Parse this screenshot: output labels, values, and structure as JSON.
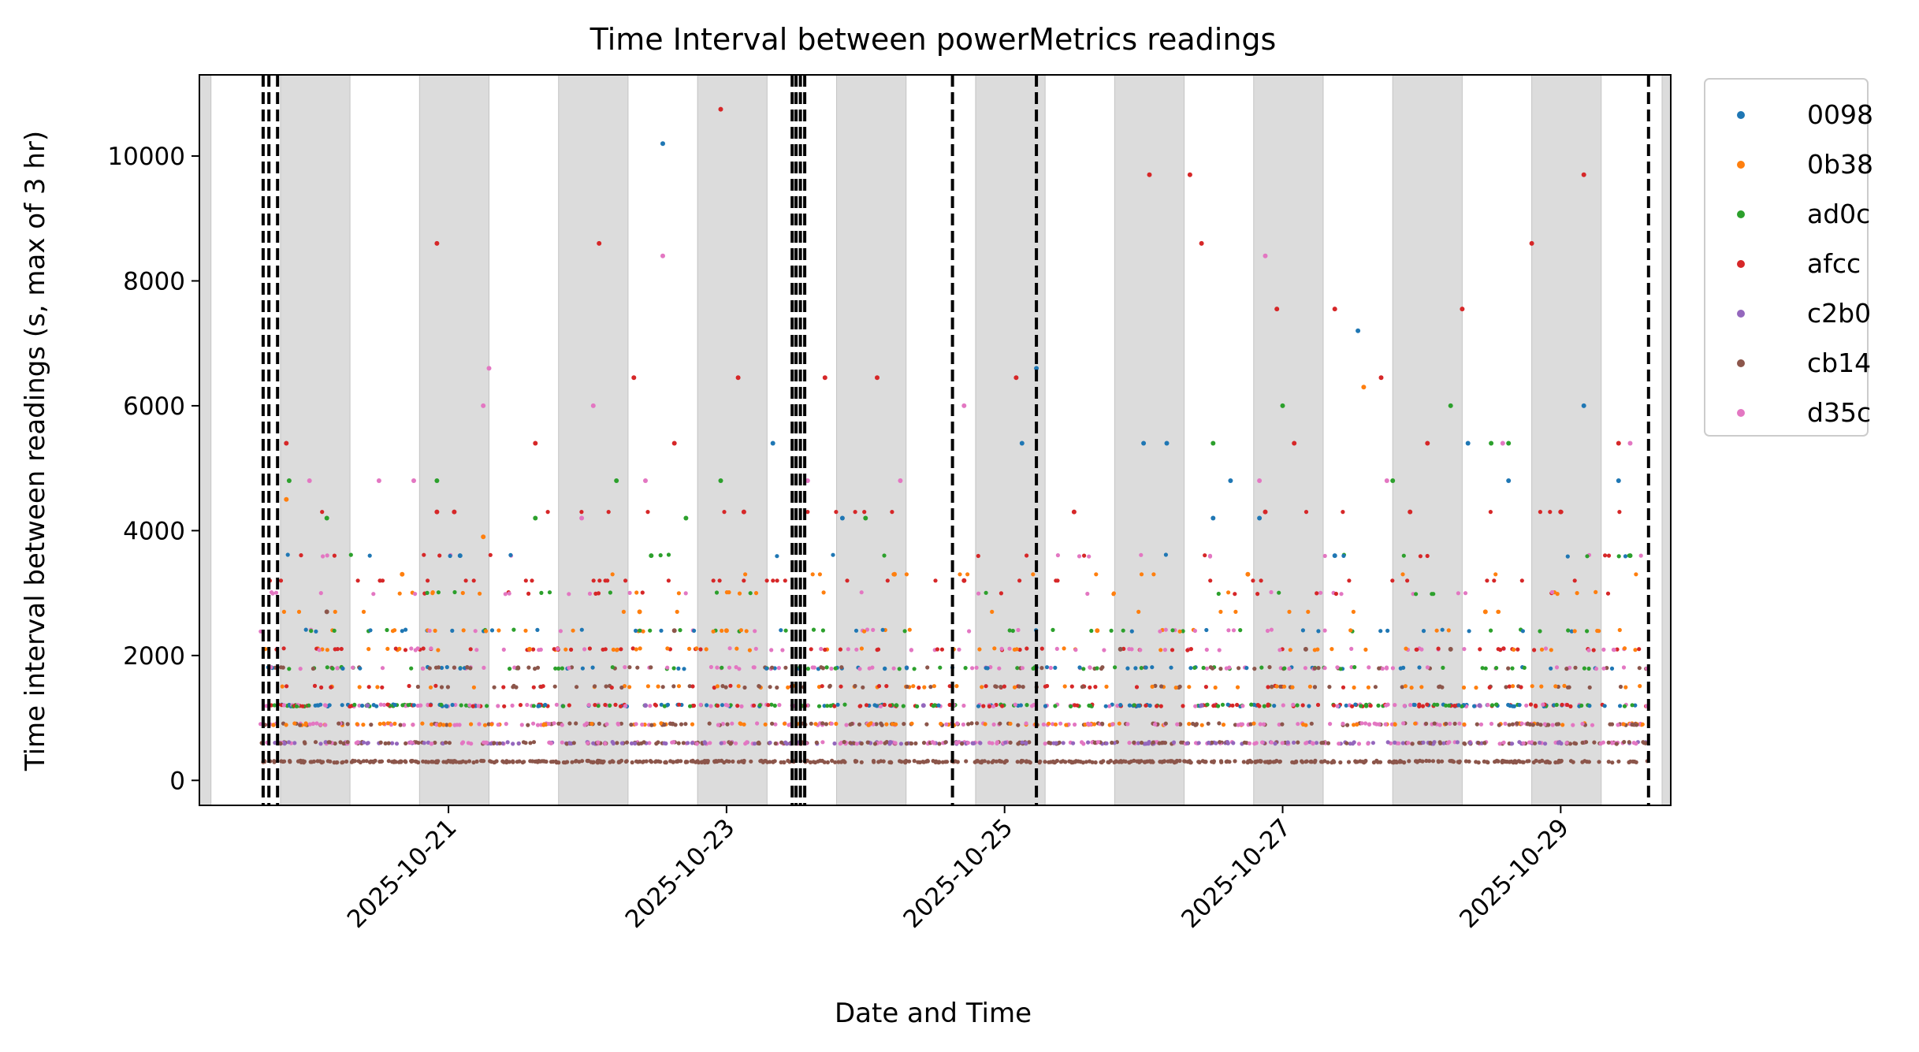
{
  "chart_data": {
    "type": "scatter",
    "title": "Time Interval between powerMetrics readings",
    "xlabel": "Date and Time",
    "ylabel": "Time interval between readings (s, max of 3 hr)",
    "xlim": [
      "2025-10-19 05:00",
      "2025-10-29 19:00"
    ],
    "ylim": [
      -400,
      11300
    ],
    "x_ticks": [
      "2025-10-21",
      "2025-10-23",
      "2025-10-25",
      "2025-10-27",
      "2025-10-29"
    ],
    "y_ticks": [
      0,
      2000,
      4000,
      6000,
      8000,
      10000
    ],
    "grid": false,
    "legend_position": "outside-top-right",
    "shaded_bands": [
      [
        "2025-10-19 05:00",
        "2025-10-19 07:00"
      ],
      [
        "2025-10-19 19:00",
        "2025-10-20 07:00"
      ],
      [
        "2025-10-20 19:00",
        "2025-10-21 07:00"
      ],
      [
        "2025-10-21 19:00",
        "2025-10-22 07:00"
      ],
      [
        "2025-10-22 19:00",
        "2025-10-23 07:00"
      ],
      [
        "2025-10-23 19:00",
        "2025-10-24 07:00"
      ],
      [
        "2025-10-24 19:00",
        "2025-10-25 07:00"
      ],
      [
        "2025-10-25 19:00",
        "2025-10-26 07:00"
      ],
      [
        "2025-10-26 19:00",
        "2025-10-27 07:00"
      ],
      [
        "2025-10-27 19:00",
        "2025-10-28 07:00"
      ],
      [
        "2025-10-28 19:00",
        "2025-10-29 07:00"
      ],
      [
        "2025-10-29 17:30",
        "2025-10-29 19:00"
      ]
    ],
    "vertical_lines": [
      "2025-10-19 16:00",
      "2025-10-19 17:00",
      "2025-10-19 18:30",
      "2025-10-23 11:20",
      "2025-10-23 12:00",
      "2025-10-23 12:45",
      "2025-10-23 13:30",
      "2025-10-24 15:00",
      "2025-10-25 05:30",
      "2025-10-29 15:10"
    ],
    "baseline_levels": [
      300,
      600,
      900,
      1200,
      1500,
      1800,
      2100,
      2400,
      3000,
      3600
    ],
    "series": [
      {
        "name": "0098",
        "color": "#1f77b4",
        "points": [
          [
            "2025-10-22 13:00",
            10200
          ],
          [
            "2025-10-23 08:00",
            5400
          ],
          [
            "2025-10-25 03:00",
            5400
          ],
          [
            "2025-10-25 05:30",
            6600
          ],
          [
            "2025-10-26 00:00",
            5400
          ],
          [
            "2025-10-26 04:00",
            5400
          ],
          [
            "2025-10-26 12:00",
            4200
          ],
          [
            "2025-10-26 15:00",
            4800
          ],
          [
            "2025-10-27 13:00",
            7200
          ],
          [
            "2025-10-28 08:00",
            5400
          ],
          [
            "2025-10-29 04:00",
            6000
          ],
          [
            "2025-10-29 10:00",
            4800
          ],
          [
            "2025-10-26 20:00",
            4200
          ],
          [
            "2025-10-27 09:00",
            3600
          ],
          [
            "2025-10-23 20:00",
            4200
          ],
          [
            "2025-10-21 02:00",
            3600
          ],
          [
            "2025-10-28 15:00",
            4800
          ]
        ]
      },
      {
        "name": "0b38",
        "color": "#ff7f0e",
        "points": [
          [
            "2025-10-19 20:00",
            4500
          ],
          [
            "2025-10-20 16:00",
            3300
          ],
          [
            "2025-10-21 06:00",
            3900
          ],
          [
            "2025-10-22 09:00",
            2700
          ],
          [
            "2025-10-27 14:00",
            6300
          ],
          [
            "2025-10-28 11:00",
            2700
          ],
          [
            "2025-10-21 14:00",
            2100
          ],
          [
            "2025-10-24 05:00",
            3300
          ],
          [
            "2025-10-26 18:00",
            3300
          ],
          [
            "2025-10-23 00:00",
            2400
          ],
          [
            "2025-10-25 16:00",
            2400
          ]
        ]
      },
      {
        "name": "ad0c",
        "color": "#2ca02c",
        "points": [
          [
            "2025-10-20 03:00",
            4200
          ],
          [
            "2025-10-20 22:00",
            4800
          ],
          [
            "2025-10-21 15:00",
            4200
          ],
          [
            "2025-10-22 05:00",
            4800
          ],
          [
            "2025-10-22 17:00",
            4200
          ],
          [
            "2025-10-22 23:00",
            4800
          ],
          [
            "2025-10-24 00:00",
            4200
          ],
          [
            "2025-10-26 12:00",
            5400
          ],
          [
            "2025-10-27 00:00",
            6000
          ],
          [
            "2025-10-27 19:00",
            4800
          ],
          [
            "2025-10-28 05:00",
            6000
          ],
          [
            "2025-10-28 12:00",
            5400
          ],
          [
            "2025-10-28 15:00",
            5400
          ],
          [
            "2025-10-19 20:30",
            4800
          ],
          [
            "2025-10-22 11:00",
            3600
          ],
          [
            "2025-10-29 12:00",
            3600
          ]
        ]
      },
      {
        "name": "afcc",
        "color": "#d62728",
        "points": [
          [
            "2025-10-19 20:00",
            5400
          ],
          [
            "2025-10-20 22:00",
            8600
          ],
          [
            "2025-10-21 15:00",
            5400
          ],
          [
            "2025-10-22 02:00",
            8600
          ],
          [
            "2025-10-22 08:00",
            6450
          ],
          [
            "2025-10-22 15:00",
            5400
          ],
          [
            "2025-10-22 23:00",
            10750
          ],
          [
            "2025-10-23 02:00",
            6450
          ],
          [
            "2025-10-23 17:00",
            6450
          ],
          [
            "2025-10-24 02:00",
            6450
          ],
          [
            "2025-10-24 17:00",
            3200
          ],
          [
            "2025-10-25 02:00",
            6450
          ],
          [
            "2025-10-26 01:00",
            9700
          ],
          [
            "2025-10-26 08:00",
            9700
          ],
          [
            "2025-10-26 10:00",
            8600
          ],
          [
            "2025-10-26 23:00",
            7550
          ],
          [
            "2025-10-27 09:00",
            7550
          ],
          [
            "2025-10-27 17:00",
            6450
          ],
          [
            "2025-10-28 07:00",
            7550
          ],
          [
            "2025-10-28 19:00",
            8600
          ],
          [
            "2025-10-29 04:00",
            9700
          ],
          [
            "2025-10-29 10:00",
            5400
          ],
          [
            "2025-10-20 22:00",
            4300
          ],
          [
            "2025-10-21 01:00",
            4300
          ],
          [
            "2025-10-23 03:00",
            4300
          ],
          [
            "2025-10-25 12:00",
            4300
          ],
          [
            "2025-10-26 21:00",
            4300
          ],
          [
            "2025-10-27 22:00",
            4300
          ],
          [
            "2025-10-29 00:00",
            4300
          ],
          [
            "2025-10-27 02:00",
            5400
          ],
          [
            "2025-10-28 01:00",
            5400
          ]
        ]
      },
      {
        "name": "c2b0",
        "color": "#9467bd",
        "points": [
          [
            "2025-10-20 10:00",
            1200
          ],
          [
            "2025-10-22 10:00",
            1200
          ],
          [
            "2025-10-24 10:00",
            1200
          ],
          [
            "2025-10-26 10:00",
            1200
          ],
          [
            "2025-10-28 10:00",
            1200
          ]
        ]
      },
      {
        "name": "cb14",
        "color": "#8c564b",
        "points": [
          [
            "2025-10-20 03:00",
            2700
          ],
          [
            "2025-10-22 15:00",
            2400
          ],
          [
            "2025-10-25 20:00",
            2100
          ],
          [
            "2025-10-28 05:00",
            2100
          ],
          [
            "2025-10-21 12:00",
            1800
          ],
          [
            "2025-10-27 04:00",
            2100
          ]
        ]
      },
      {
        "name": "d35c",
        "color": "#e377c2",
        "points": [
          [
            "2025-10-21 07:00",
            6600
          ],
          [
            "2025-10-21 06:00",
            6000
          ],
          [
            "2025-10-22 01:00",
            6000
          ],
          [
            "2025-10-22 13:00",
            8400
          ],
          [
            "2025-10-24 17:00",
            6000
          ],
          [
            "2025-10-26 21:00",
            8400
          ],
          [
            "2025-10-28 14:00",
            5400
          ],
          [
            "2025-10-29 12:00",
            5400
          ],
          [
            "2025-10-20 12:00",
            4800
          ],
          [
            "2025-10-21 23:00",
            4200
          ],
          [
            "2025-10-22 10:00",
            4800
          ],
          [
            "2025-10-23 14:00",
            4800
          ],
          [
            "2025-10-26 20:00",
            4800
          ],
          [
            "2025-10-27 18:00",
            4800
          ],
          [
            "2025-10-20 00:00",
            4800
          ],
          [
            "2025-10-20 18:00",
            4800
          ],
          [
            "2025-10-24 06:00",
            4800
          ]
        ]
      }
    ]
  }
}
